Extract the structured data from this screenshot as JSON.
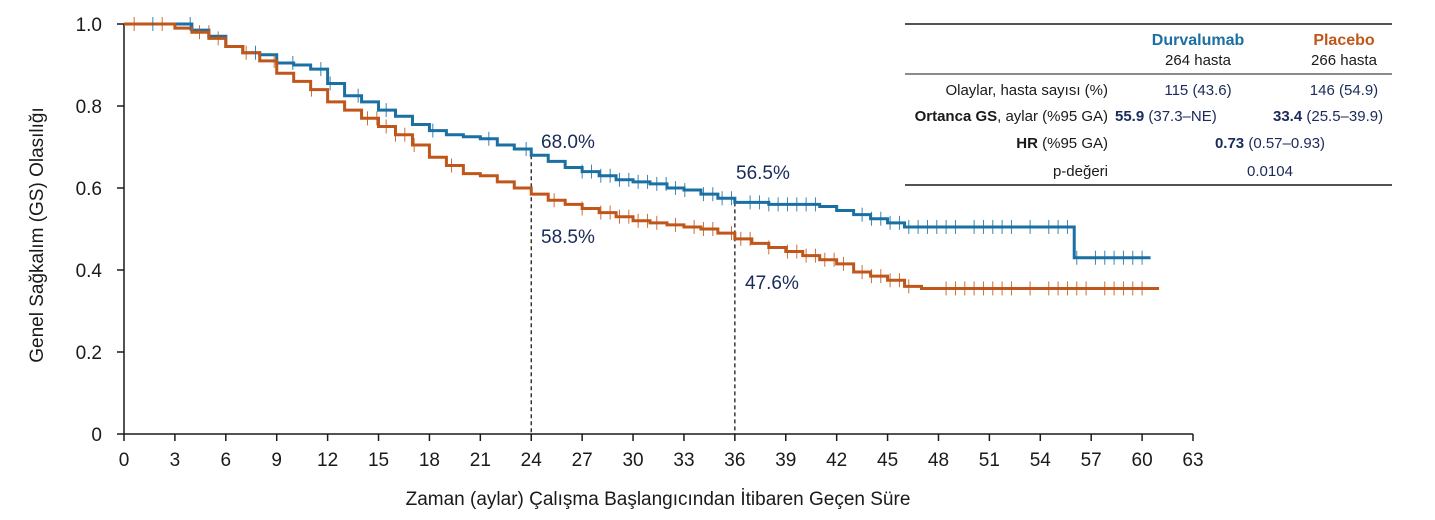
{
  "chart_data": {
    "type": "line",
    "xlabel": "Zaman (aylar) Çalışma Başlangıcından İtibaren Geçen Süre",
    "ylabel": "Genel Sağkalım (GS) Olasılığı",
    "xlim": [
      0,
      63
    ],
    "ylim": [
      0,
      1.0
    ],
    "xticks": [
      "0",
      "3",
      "6",
      "9",
      "12",
      "15",
      "18",
      "21",
      "24",
      "27",
      "30",
      "33",
      "36",
      "39",
      "42",
      "45",
      "48",
      "51",
      "54",
      "57",
      "60",
      "63"
    ],
    "yticks": [
      "0",
      "0.2",
      "0.4",
      "0.6",
      "0.8",
      "1.0"
    ],
    "grid": false,
    "series": [
      {
        "name": "Durvalumab",
        "color": "#1a6fa3",
        "x": [
          0,
          3,
          4,
          5,
          6,
          7,
          8,
          9,
          10,
          11,
          12,
          13,
          14,
          15,
          16,
          17,
          18,
          19,
          20,
          21,
          22,
          23,
          24,
          25,
          26,
          27,
          28,
          29,
          30,
          31,
          32,
          33,
          34,
          35,
          36,
          37,
          38,
          39,
          40,
          41,
          42,
          43,
          44,
          45,
          46,
          47,
          48,
          50,
          52,
          54,
          55,
          56,
          57,
          58,
          59,
          60,
          60.5
        ],
        "y": [
          1.0,
          1.0,
          0.985,
          0.97,
          0.945,
          0.93,
          0.925,
          0.905,
          0.9,
          0.89,
          0.855,
          0.825,
          0.81,
          0.79,
          0.775,
          0.755,
          0.74,
          0.73,
          0.725,
          0.72,
          0.705,
          0.695,
          0.68,
          0.665,
          0.65,
          0.64,
          0.63,
          0.62,
          0.615,
          0.61,
          0.6,
          0.595,
          0.585,
          0.575,
          0.565,
          0.565,
          0.56,
          0.56,
          0.56,
          0.555,
          0.545,
          0.535,
          0.525,
          0.515,
          0.505,
          0.505,
          0.505,
          0.505,
          0.505,
          0.505,
          0.505,
          0.43,
          0.43,
          0.43,
          0.43,
          0.43,
          0.43
        ]
      },
      {
        "name": "Placebo",
        "color": "#c0561a",
        "x": [
          0,
          3,
          4,
          5,
          6,
          7,
          8,
          9,
          10,
          11,
          12,
          13,
          14,
          15,
          16,
          17,
          18,
          19,
          20,
          21,
          22,
          23,
          24,
          25,
          26,
          27,
          28,
          29,
          30,
          31,
          32,
          33,
          34,
          35,
          36,
          37,
          38,
          39,
          40,
          41,
          42,
          43,
          44,
          45,
          46,
          47,
          48,
          50,
          52,
          54,
          56,
          58,
          60,
          61
        ],
        "y": [
          1.0,
          0.99,
          0.98,
          0.965,
          0.945,
          0.93,
          0.91,
          0.88,
          0.86,
          0.84,
          0.81,
          0.79,
          0.77,
          0.75,
          0.73,
          0.705,
          0.675,
          0.655,
          0.635,
          0.63,
          0.615,
          0.6,
          0.585,
          0.57,
          0.56,
          0.55,
          0.54,
          0.53,
          0.52,
          0.515,
          0.51,
          0.505,
          0.5,
          0.49,
          0.476,
          0.465,
          0.455,
          0.445,
          0.435,
          0.425,
          0.415,
          0.395,
          0.385,
          0.375,
          0.36,
          0.355,
          0.355,
          0.355,
          0.355,
          0.355,
          0.355,
          0.355,
          0.355,
          0.355
        ]
      }
    ],
    "reference_lines": [
      {
        "x": 24,
        "y": 0.68
      },
      {
        "x": 36,
        "y": 0.565
      }
    ],
    "annotations": {
      "durva_24": "68.0%",
      "durva_36": "56.5%",
      "placebo_24": "58.5%",
      "placebo_36": "47.6%"
    }
  },
  "legend_table": {
    "headers": {
      "durva_name": "Durvalumab",
      "durva_n": "264 hasta",
      "placebo_name": "Placebo",
      "placebo_n": "266 hasta"
    },
    "rows": {
      "events_label": "Olaylar, hasta sayısı (%)",
      "events_durva": "115 (43.6)",
      "events_placebo": "146 (54.9)",
      "median_label_bold": "Ortanca GS",
      "median_label_rest": ", aylar (%95 GA)",
      "median_durva_bold": "55.9",
      "median_durva_rest": " (37.3–NE)",
      "median_placebo_bold": "33.4",
      "median_placebo_rest": " (25.5–39.9)",
      "hr_label_bold": "HR",
      "hr_label_rest": " (%95 GA)",
      "hr_value_bold": "0.73",
      "hr_value_rest": " (0.57–0.93)",
      "p_label": "p-değeri",
      "p_value": "0.0104"
    }
  }
}
